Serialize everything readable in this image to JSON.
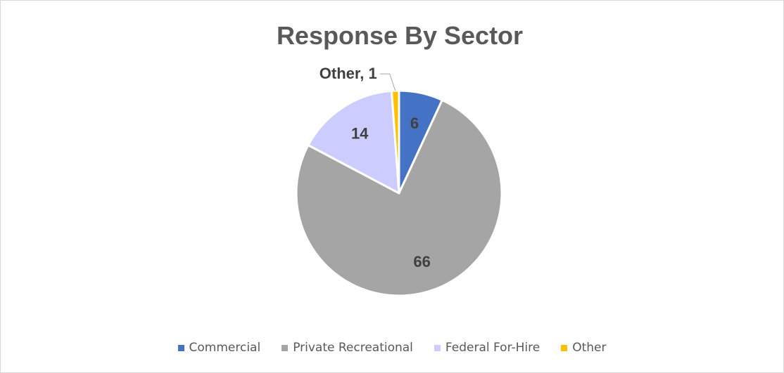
{
  "chart_data": {
    "type": "pie",
    "title": "Response By Sector",
    "categories": [
      "Commercial",
      "Private Recreational",
      "Federal For-Hire",
      "Other"
    ],
    "values": [
      6,
      66,
      14,
      1
    ],
    "data_labels": [
      "6",
      "66",
      "14",
      "Other, 1"
    ],
    "colors": [
      "#4472C4",
      "#A5A5A5",
      "#CCCCFF",
      "#FFC000"
    ],
    "legend_position": "bottom",
    "start_angle_deg": 0,
    "direction": "clockwise"
  }
}
